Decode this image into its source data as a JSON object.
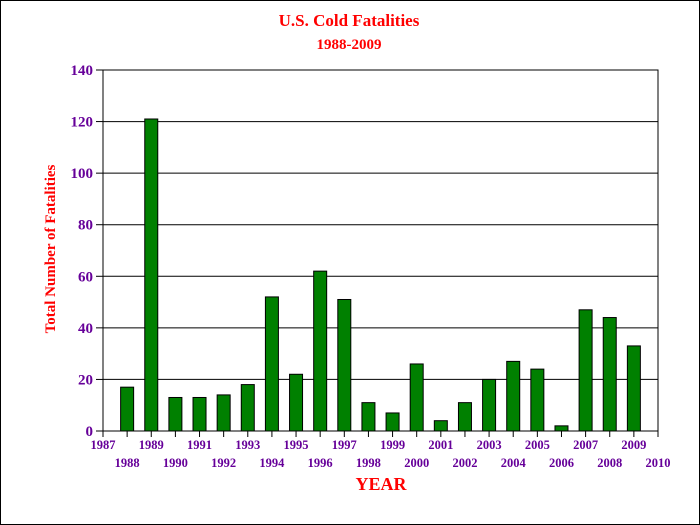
{
  "chart_data": {
    "type": "bar",
    "title": "U.S. Cold Fatalities",
    "subtitle": "1988-2009",
    "xlabel": "YEAR",
    "ylabel": "Total Number of Fatalities",
    "ylim": [
      0,
      140
    ],
    "yticks": [
      0,
      20,
      40,
      60,
      80,
      100,
      120,
      140
    ],
    "xlim": [
      1987,
      2010
    ],
    "xticks": [
      1987,
      1988,
      1989,
      1990,
      1991,
      1992,
      1993,
      1994,
      1995,
      1996,
      1997,
      1998,
      1999,
      2000,
      2001,
      2002,
      2003,
      2004,
      2005,
      2006,
      2007,
      2008,
      2009,
      2010
    ],
    "grid": true,
    "categories": [
      1988,
      1989,
      1990,
      1991,
      1992,
      1993,
      1994,
      1995,
      1996,
      1997,
      1998,
      1999,
      2000,
      2001,
      2002,
      2003,
      2004,
      2005,
      2006,
      2007,
      2008,
      2009
    ],
    "values": [
      17,
      121,
      13,
      13,
      14,
      18,
      52,
      22,
      62,
      51,
      11,
      7,
      26,
      4,
      11,
      20,
      27,
      24,
      2,
      47,
      44,
      33
    ],
    "colors": {
      "bar": "#008000",
      "bar_stroke": "#000000",
      "title": "#ff0000",
      "axis_label": "#ff0000",
      "tick_label": "#660099",
      "grid": "#000000"
    }
  }
}
